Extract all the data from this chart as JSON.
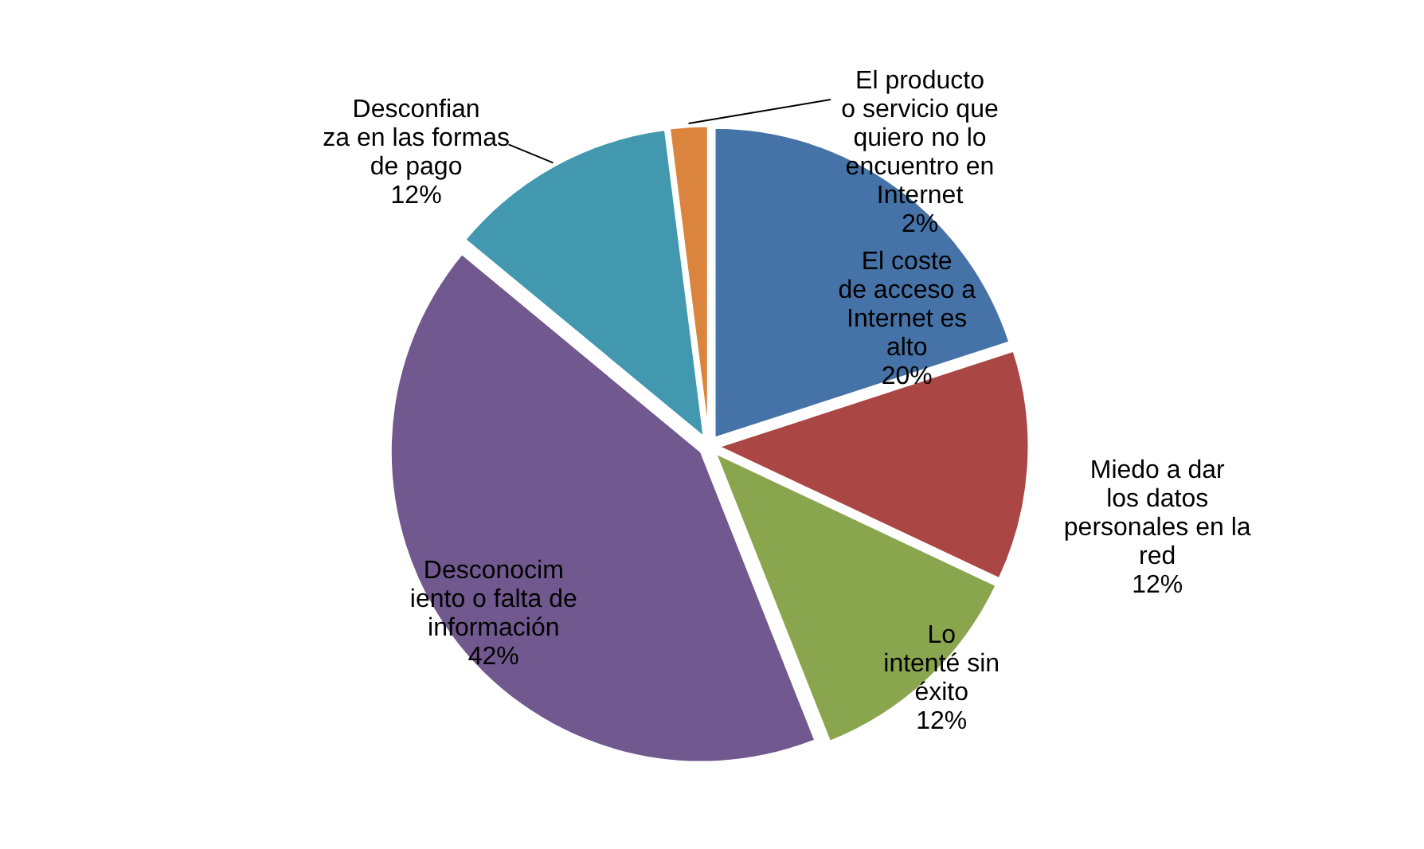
{
  "chart_data": {
    "type": "pie",
    "categories": [
      "El coste\nde acceso a\nInternet es\nalto",
      "Miedo a dar\nlos datos\npersonales en la\nred",
      "Lo\nintenté sin\néxito",
      "Desconocim\niento o falta de\ninformación",
      "Desconfian\nza en las formas\nde pago",
      "El producto\no servicio que\nquiero no lo\nencuentro en\nInternet"
    ],
    "values": [
      20,
      12,
      12,
      42,
      12,
      2
    ],
    "value_labels": [
      "20%",
      "12%",
      "12%",
      "42%",
      "12%",
      "2%"
    ],
    "colors": [
      "#4572a7",
      "#aa4643",
      "#89a54e",
      "#71588f",
      "#4198af",
      "#db843d"
    ],
    "legend": false
  }
}
